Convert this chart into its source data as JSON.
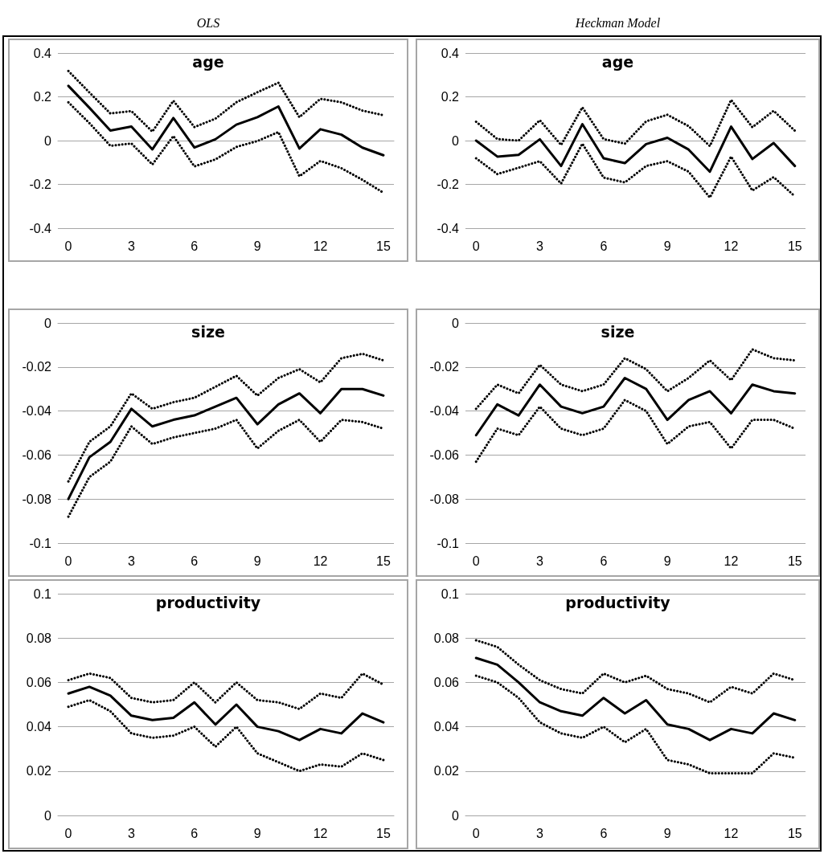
{
  "chart_data": [
    {
      "type": "line",
      "title": "age",
      "annotations": [
        "OLS"
      ],
      "categories": [
        "0",
        null,
        null,
        "3",
        null,
        null,
        "6",
        null,
        null,
        "9",
        null,
        null,
        "12",
        null,
        null,
        "15"
      ],
      "ylim": [
        -0.4,
        0.4
      ],
      "yticks": [
        -0.4,
        -0.2,
        0,
        0.2,
        0.4
      ],
      "grid": "y",
      "marker": "none",
      "series": [
        {
          "color": "#000000",
          "line_style": "solid",
          "values": [
            0.25,
            0.15,
            0.046,
            0.064,
            -0.04,
            0.103,
            -0.032,
            0.006,
            0.073,
            0.107,
            0.156,
            -0.036,
            0.052,
            0.027,
            -0.032,
            -0.067
          ]
        },
        {
          "color": "#000000",
          "line_style": "dotted",
          "values": [
            0.318,
            0.22,
            0.124,
            0.135,
            0.041,
            0.182,
            0.062,
            0.1,
            0.175,
            0.221,
            0.264,
            0.107,
            0.191,
            0.175,
            0.137,
            0.116
          ]
        },
        {
          "color": "#000000",
          "line_style": "dotted",
          "values": [
            0.175,
            0.08,
            -0.024,
            -0.013,
            -0.109,
            0.021,
            -0.118,
            -0.086,
            -0.029,
            -0.002,
            0.039,
            -0.163,
            -0.093,
            -0.126,
            -0.179,
            -0.238
          ]
        }
      ]
    },
    {
      "type": "line",
      "title": "age",
      "annotations": [
        "Heckman Model"
      ],
      "categories": [
        "0",
        null,
        null,
        "3",
        null,
        null,
        "6",
        null,
        null,
        "9",
        null,
        null,
        "12",
        null,
        null,
        "15"
      ],
      "ylim": [
        -0.4,
        0.4
      ],
      "yticks": [
        -0.4,
        -0.2,
        0,
        0.2,
        0.4
      ],
      "grid": "y",
      "marker": "none",
      "series": [
        {
          "color": "#000000",
          "line_style": "solid",
          "values": [
            0,
            -0.073,
            -0.065,
            0.006,
            -0.116,
            0.075,
            -0.081,
            -0.103,
            -0.016,
            0.013,
            -0.041,
            -0.142,
            0.064,
            -0.084,
            -0.011,
            -0.116
          ]
        },
        {
          "color": "#000000",
          "line_style": "dotted",
          "values": [
            0.086,
            0.007,
            0,
            0.093,
            -0.02,
            0.152,
            0.007,
            -0.014,
            0.088,
            0.118,
            0.066,
            -0.025,
            0.186,
            0.061,
            0.136,
            0.045
          ]
        },
        {
          "color": "#000000",
          "line_style": "dotted",
          "values": [
            -0.081,
            -0.153,
            -0.124,
            -0.094,
            -0.196,
            -0.014,
            -0.169,
            -0.191,
            -0.116,
            -0.094,
            -0.142,
            -0.26,
            -0.073,
            -0.228,
            -0.167,
            -0.255
          ]
        }
      ]
    },
    {
      "type": "line",
      "title": "size",
      "categories": [
        "0",
        null,
        null,
        "3",
        null,
        null,
        "6",
        null,
        null,
        "9",
        null,
        null,
        "12",
        null,
        null,
        "15"
      ],
      "ylim": [
        -0.1,
        0
      ],
      "yticks": [
        -0.1,
        -0.08,
        -0.06,
        -0.04,
        -0.02,
        0
      ],
      "grid": "y",
      "marker": "none",
      "series": [
        {
          "color": "#000000",
          "line_style": "solid",
          "values": [
            -0.08,
            -0.061,
            -0.054,
            -0.039,
            -0.047,
            -0.044,
            -0.042,
            -0.038,
            -0.034,
            -0.046,
            -0.037,
            -0.032,
            -0.041,
            -0.03,
            -0.03,
            -0.033
          ]
        },
        {
          "color": "#000000",
          "line_style": "dotted",
          "values": [
            -0.072,
            -0.054,
            -0.047,
            -0.032,
            -0.039,
            -0.036,
            -0.034,
            -0.029,
            -0.024,
            -0.033,
            -0.025,
            -0.021,
            -0.027,
            -0.016,
            -0.014,
            -0.017
          ]
        },
        {
          "color": "#000000",
          "line_style": "dotted",
          "values": [
            -0.088,
            -0.07,
            -0.063,
            -0.047,
            -0.055,
            -0.052,
            -0.05,
            -0.048,
            -0.044,
            -0.057,
            -0.049,
            -0.044,
            -0.054,
            -0.044,
            -0.045,
            -0.048
          ]
        }
      ]
    },
    {
      "type": "line",
      "title": "size",
      "categories": [
        "0",
        null,
        null,
        "3",
        null,
        null,
        "6",
        null,
        null,
        "9",
        null,
        null,
        "12",
        null,
        null,
        "15"
      ],
      "ylim": [
        -0.1,
        0
      ],
      "yticks": [
        -0.1,
        -0.08,
        -0.06,
        -0.04,
        -0.02,
        0
      ],
      "grid": "y",
      "marker": "none",
      "series": [
        {
          "color": "#000000",
          "line_style": "solid",
          "values": [
            -0.051,
            -0.037,
            -0.042,
            -0.028,
            -0.038,
            -0.041,
            -0.038,
            -0.025,
            -0.03,
            -0.044,
            -0.035,
            -0.031,
            -0.041,
            -0.028,
            -0.031,
            -0.032
          ]
        },
        {
          "color": "#000000",
          "line_style": "dotted",
          "values": [
            -0.039,
            -0.028,
            -0.032,
            -0.019,
            -0.028,
            -0.031,
            -0.028,
            -0.016,
            -0.021,
            -0.031,
            -0.025,
            -0.017,
            -0.026,
            -0.012,
            -0.016,
            -0.017
          ]
        },
        {
          "color": "#000000",
          "line_style": "dotted",
          "values": [
            -0.063,
            -0.048,
            -0.051,
            -0.038,
            -0.048,
            -0.051,
            -0.048,
            -0.035,
            -0.04,
            -0.055,
            -0.047,
            -0.045,
            -0.057,
            -0.044,
            -0.044,
            -0.048
          ]
        }
      ]
    },
    {
      "type": "line",
      "title": "productivity",
      "categories": [
        "0",
        null,
        null,
        "3",
        null,
        null,
        "6",
        null,
        null,
        "9",
        null,
        null,
        "12",
        null,
        null,
        "15"
      ],
      "ylim": [
        0,
        0.1
      ],
      "yticks": [
        0,
        0.02,
        0.04,
        0.06,
        0.08,
        0.1
      ],
      "grid": "y",
      "marker": "none",
      "series": [
        {
          "color": "#000000",
          "line_style": "solid",
          "values": [
            0.055,
            0.058,
            0.054,
            0.045,
            0.043,
            0.044,
            0.051,
            0.041,
            0.05,
            0.04,
            0.038,
            0.034,
            0.039,
            0.037,
            0.046,
            0.042
          ]
        },
        {
          "color": "#000000",
          "line_style": "dotted",
          "values": [
            0.061,
            0.064,
            0.062,
            0.053,
            0.051,
            0.052,
            0.06,
            0.051,
            0.06,
            0.052,
            0.051,
            0.048,
            0.055,
            0.053,
            0.064,
            0.059
          ]
        },
        {
          "color": "#000000",
          "line_style": "dotted",
          "values": [
            0.049,
            0.052,
            0.047,
            0.037,
            0.035,
            0.036,
            0.04,
            0.031,
            0.04,
            0.028,
            0.024,
            0.02,
            0.023,
            0.022,
            0.028,
            0.025
          ]
        }
      ]
    },
    {
      "type": "line",
      "title": "productivity",
      "categories": [
        "0",
        null,
        null,
        "3",
        null,
        null,
        "6",
        null,
        null,
        "9",
        null,
        null,
        "12",
        null,
        null,
        "15"
      ],
      "ylim": [
        0,
        0.1
      ],
      "yticks": [
        0,
        0.02,
        0.04,
        0.06,
        0.08,
        0.1
      ],
      "grid": "y",
      "marker": "none",
      "series": [
        {
          "color": "#000000",
          "line_style": "solid",
          "values": [
            0.071,
            0.068,
            0.06,
            0.051,
            0.047,
            0.045,
            0.053,
            0.046,
            0.052,
            0.041,
            0.039,
            0.034,
            0.039,
            0.037,
            0.046,
            0.043
          ]
        },
        {
          "color": "#000000",
          "line_style": "dotted",
          "values": [
            0.079,
            0.076,
            0.068,
            0.061,
            0.057,
            0.055,
            0.064,
            0.06,
            0.063,
            0.057,
            0.055,
            0.051,
            0.058,
            0.055,
            0.064,
            0.061
          ]
        },
        {
          "color": "#000000",
          "line_style": "dotted",
          "values": [
            0.063,
            0.06,
            0.053,
            0.042,
            0.037,
            0.035,
            0.04,
            0.033,
            0.039,
            0.025,
            0.023,
            0.019,
            0.019,
            0.019,
            0.028,
            0.026
          ]
        }
      ]
    }
  ]
}
